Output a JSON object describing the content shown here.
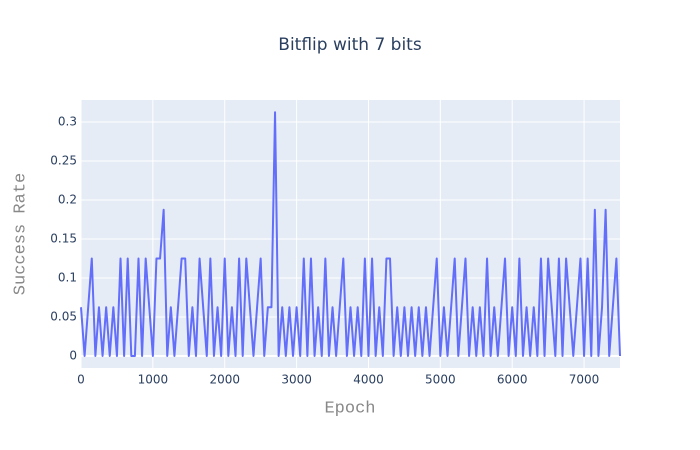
{
  "chart_data": {
    "type": "line",
    "title": "Bitflip with 7 bits",
    "x_label": "Epoch",
    "y_label": "Success Rate",
    "xlim": [
      0,
      7500
    ],
    "ylim": [
      -0.0154,
      0.3282
    ],
    "xticks": [
      0,
      1000,
      2000,
      3000,
      4000,
      5000,
      6000,
      7000
    ],
    "yticks": [
      0,
      0.05,
      0.1,
      0.15,
      0.2,
      0.25,
      0.3
    ],
    "grid": true,
    "series": [
      {
        "name": "Success Rate",
        "color": "#636efa",
        "x": [
          0,
          50,
          100,
          150,
          200,
          250,
          300,
          350,
          400,
          450,
          500,
          550,
          600,
          650,
          700,
          750,
          800,
          850,
          900,
          950,
          1000,
          1050,
          1100,
          1150,
          1200,
          1250,
          1300,
          1350,
          1400,
          1450,
          1500,
          1550,
          1600,
          1650,
          1700,
          1750,
          1800,
          1850,
          1900,
          1950,
          2000,
          2050,
          2100,
          2150,
          2200,
          2250,
          2300,
          2350,
          2400,
          2450,
          2500,
          2550,
          2600,
          2650,
          2700,
          2750,
          2800,
          2850,
          2900,
          2950,
          3000,
          3050,
          3100,
          3150,
          3200,
          3250,
          3300,
          3350,
          3400,
          3450,
          3500,
          3550,
          3600,
          3650,
          3700,
          3750,
          3800,
          3850,
          3900,
          3950,
          4000,
          4050,
          4100,
          4150,
          4200,
          4250,
          4300,
          4350,
          4400,
          4450,
          4500,
          4550,
          4600,
          4650,
          4700,
          4750,
          4800,
          4850,
          4900,
          4950,
          5000,
          5050,
          5100,
          5150,
          5200,
          5250,
          5300,
          5350,
          5400,
          5450,
          5500,
          5550,
          5600,
          5650,
          5700,
          5750,
          5800,
          5850,
          5900,
          5950,
          6000,
          6050,
          6100,
          6150,
          6200,
          6250,
          6300,
          6350,
          6400,
          6450,
          6500,
          6550,
          6600,
          6650,
          6700,
          6750,
          6800,
          6850,
          6900,
          6950,
          7000,
          7050,
          7100,
          7150,
          7200,
          7250,
          7300,
          7350,
          7400,
          7450,
          7500
        ],
        "values": [
          0.0625,
          0,
          0.0625,
          0.125,
          0,
          0.0625,
          0,
          0.0625,
          0,
          0.0625,
          0,
          0.125,
          0,
          0.125,
          0,
          0,
          0.125,
          0,
          0.125,
          0.0625,
          0,
          0.125,
          0.125,
          0.1875,
          0,
          0.0625,
          0,
          0.0625,
          0.125,
          0.125,
          0,
          0.0625,
          0,
          0.125,
          0.0625,
          0,
          0.125,
          0,
          0.0625,
          0,
          0.125,
          0,
          0.0625,
          0,
          0.125,
          0,
          0.125,
          0.0625,
          0,
          0.0625,
          0.125,
          0,
          0.0625,
          0.0625,
          0.3125,
          0,
          0.0625,
          0,
          0.0625,
          0,
          0.0625,
          0,
          0.125,
          0,
          0.125,
          0,
          0.0625,
          0,
          0.125,
          0,
          0.0625,
          0,
          0.0625,
          0.125,
          0,
          0.0625,
          0,
          0.0625,
          0,
          0.125,
          0,
          0.125,
          0,
          0.0625,
          0,
          0.125,
          0.125,
          0,
          0.0625,
          0,
          0.0625,
          0,
          0.0625,
          0,
          0.0625,
          0,
          0.0625,
          0,
          0.0625,
          0.125,
          0,
          0.0625,
          0,
          0.0625,
          0.125,
          0,
          0.0625,
          0.125,
          0,
          0.0625,
          0,
          0.0625,
          0,
          0.125,
          0,
          0.0625,
          0,
          0.0625,
          0.125,
          0,
          0.0625,
          0,
          0.125,
          0,
          0.0625,
          0,
          0.0625,
          0,
          0.125,
          0,
          0.125,
          0.0625,
          0,
          0.125,
          0,
          0.125,
          0.0625,
          0,
          0.0625,
          0.125,
          0,
          0.125,
          0,
          0.1875,
          0,
          0.0625,
          0.1875,
          0,
          0.0625,
          0.125,
          0
        ]
      }
    ]
  }
}
